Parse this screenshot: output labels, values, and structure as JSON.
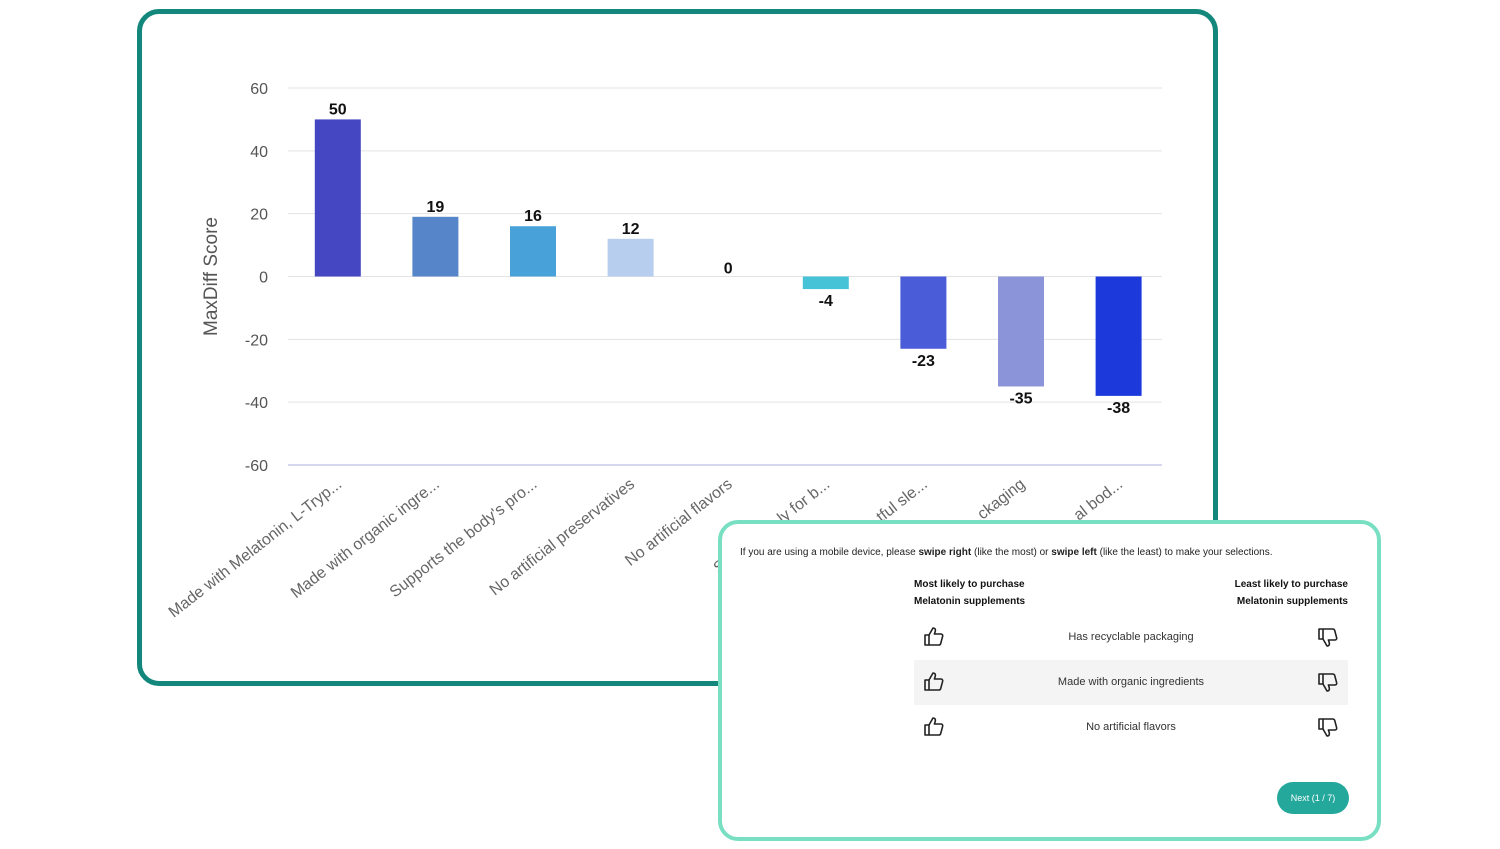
{
  "chart_data": {
    "type": "bar",
    "ylabel": "MaxDiff Score",
    "xlabel": "",
    "ylim": [
      -60,
      60
    ],
    "yticks": [
      60,
      40,
      20,
      0,
      -20,
      -40,
      -60
    ],
    "grid": true,
    "categories": [
      "Made with Melatonin, L-Tryp...",
      "Made with organic ingre...",
      "Supports the body's pro...",
      "No artificial preservatives",
      "No artificial flavors",
      "Sleep ma...ly for b...",
      "...tful sle...",
      "...ckaging",
      "...al bod..."
    ],
    "values": [
      50,
      19,
      16,
      12,
      0,
      -4,
      -23,
      -35,
      -38
    ],
    "colors": [
      "#4447c1",
      "#5686c9",
      "#48a1d8",
      "#b8ceee",
      "#cccccc",
      "#47c3d8",
      "#4a5cd8",
      "#8b93d9",
      "#1c3adb"
    ]
  },
  "survey": {
    "instructions": {
      "pre": "If you are using a mobile device, please ",
      "swipe_right": "swipe right",
      "mid1": " (like the most) or ",
      "swipe_left": "swipe left",
      "mid2": " (like the least) to make your selections."
    },
    "most_header": [
      "Most likely to purchase",
      "Melatonin supplements"
    ],
    "least_header": [
      "Least likely to purchase",
      "Melatonin supplements"
    ],
    "options": [
      "Has recyclable packaging",
      "Made with organic ingredients",
      "No artificial flavors"
    ],
    "next_label": "Next (1 / 7)"
  }
}
